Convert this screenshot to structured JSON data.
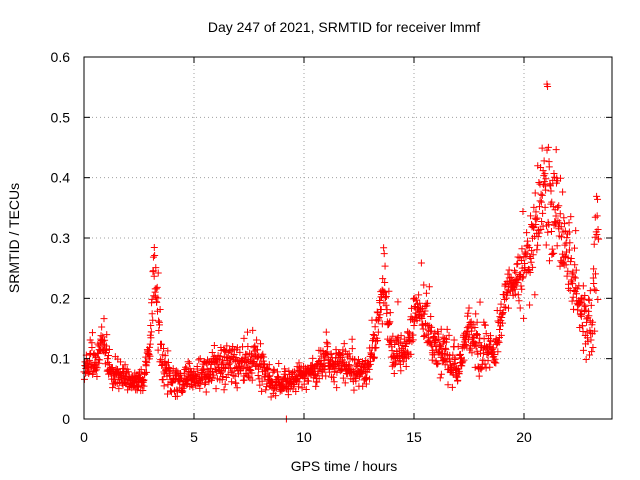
{
  "chart_data": {
    "type": "scatter",
    "title": "Day 247 of 2021, SRMTID for receiver lmmf",
    "xlabel": "GPS time / hours",
    "ylabel": "SRMTID / TECUs",
    "xlim": [
      0,
      24
    ],
    "ylim": [
      0,
      0.6
    ],
    "xticks": [
      0,
      5,
      10,
      15,
      20
    ],
    "yticks": [
      0,
      0.1,
      0.2,
      0.3,
      0.4,
      0.5,
      0.6
    ],
    "ytick_labels": [
      "0",
      "0.1",
      "0.2",
      "0.3",
      "0.4",
      "0.5",
      "0.6"
    ],
    "grid": true,
    "marker": "plus",
    "color": "#ff0000",
    "outlier": {
      "x": 9.2,
      "y": 0.0
    },
    "trend": [
      {
        "x": 0.0,
        "y": 0.09,
        "s": 0.025
      },
      {
        "x": 0.5,
        "y": 0.09,
        "s": 0.025
      },
      {
        "x": 0.8,
        "y": 0.13,
        "s": 0.02
      },
      {
        "x": 1.2,
        "y": 0.08,
        "s": 0.02
      },
      {
        "x": 2.0,
        "y": 0.065,
        "s": 0.015
      },
      {
        "x": 2.7,
        "y": 0.06,
        "s": 0.015
      },
      {
        "x": 3.0,
        "y": 0.12,
        "s": 0.03
      },
      {
        "x": 3.2,
        "y": 0.25,
        "s": 0.05
      },
      {
        "x": 3.5,
        "y": 0.1,
        "s": 0.03
      },
      {
        "x": 4.0,
        "y": 0.06,
        "s": 0.02
      },
      {
        "x": 5.0,
        "y": 0.07,
        "s": 0.02
      },
      {
        "x": 6.0,
        "y": 0.085,
        "s": 0.025
      },
      {
        "x": 7.0,
        "y": 0.09,
        "s": 0.025
      },
      {
        "x": 7.8,
        "y": 0.1,
        "s": 0.03
      },
      {
        "x": 8.5,
        "y": 0.06,
        "s": 0.02
      },
      {
        "x": 9.0,
        "y": 0.055,
        "s": 0.015
      },
      {
        "x": 10.0,
        "y": 0.075,
        "s": 0.02
      },
      {
        "x": 11.0,
        "y": 0.09,
        "s": 0.025
      },
      {
        "x": 12.0,
        "y": 0.09,
        "s": 0.025
      },
      {
        "x": 12.8,
        "y": 0.07,
        "s": 0.02
      },
      {
        "x": 13.3,
        "y": 0.14,
        "s": 0.03
      },
      {
        "x": 13.6,
        "y": 0.22,
        "s": 0.05
      },
      {
        "x": 14.0,
        "y": 0.12,
        "s": 0.03
      },
      {
        "x": 14.5,
        "y": 0.1,
        "s": 0.03
      },
      {
        "x": 15.2,
        "y": 0.19,
        "s": 0.03
      },
      {
        "x": 15.8,
        "y": 0.13,
        "s": 0.03
      },
      {
        "x": 16.5,
        "y": 0.1,
        "s": 0.03
      },
      {
        "x": 17.0,
        "y": 0.08,
        "s": 0.03
      },
      {
        "x": 17.5,
        "y": 0.15,
        "s": 0.03
      },
      {
        "x": 18.0,
        "y": 0.11,
        "s": 0.03
      },
      {
        "x": 18.7,
        "y": 0.12,
        "s": 0.03
      },
      {
        "x": 19.2,
        "y": 0.21,
        "s": 0.03
      },
      {
        "x": 20.0,
        "y": 0.25,
        "s": 0.04
      },
      {
        "x": 20.5,
        "y": 0.3,
        "s": 0.06
      },
      {
        "x": 21.0,
        "y": 0.38,
        "s": 0.09
      },
      {
        "x": 21.5,
        "y": 0.33,
        "s": 0.08
      },
      {
        "x": 22.0,
        "y": 0.26,
        "s": 0.05
      },
      {
        "x": 22.5,
        "y": 0.2,
        "s": 0.04
      },
      {
        "x": 23.0,
        "y": 0.14,
        "s": 0.05
      },
      {
        "x": 23.4,
        "y": 0.3,
        "s": 0.1
      }
    ],
    "n_points": 1700
  }
}
